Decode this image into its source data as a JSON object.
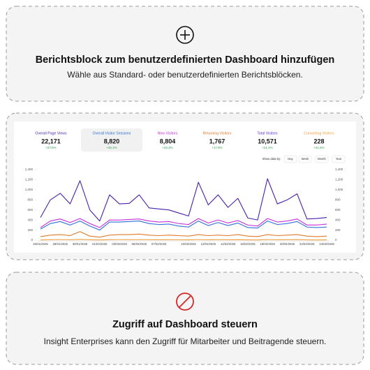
{
  "add_block": {
    "title": "Berichtsblock zum benutzerdefinierten Dashboard hinzufügen",
    "subtitle": "Wähle aus Standard- oder benutzerdefinierten Berichtsblöcken."
  },
  "metrics": [
    {
      "label": "Overall Page Views",
      "value": "22,171",
      "change": "+27.5%",
      "color": "#4a1fa8"
    },
    {
      "label": "Overall Visitor Sessions",
      "value": "8,820",
      "change": "+25.1%",
      "color": "#2f6fd6",
      "selected": true
    },
    {
      "label": "New Visitors",
      "value": "8,804",
      "change": "+23.3%",
      "color": "#c42fd6"
    },
    {
      "label": "Returning Visitors",
      "value": "1,767",
      "change": "+17.8%",
      "color": "#e07a2a"
    },
    {
      "label": "Total Visitors",
      "value": "10,571",
      "change": "+21.4%",
      "color": "#5b2bd0"
    },
    {
      "label": "Converting Visitors",
      "value": "228",
      "change": "+41.6%",
      "color": "#f0a040"
    }
  ],
  "show_data_by": {
    "label": "Show data by:",
    "options": [
      "Day",
      "Week",
      "Month",
      "Year"
    ]
  },
  "chart_data": {
    "type": "line",
    "categories": [
      "26/01/2025",
      null,
      "28/01/2025",
      null,
      "30/01/2025",
      null,
      "01/02/2025",
      null,
      "03/02/2025",
      null,
      "05/02/2025",
      null,
      "07/02/2025",
      null,
      null,
      "10/02/2025",
      null,
      "12/02/2025",
      null,
      "14/02/2025",
      null,
      "16/02/2025",
      null,
      "18/02/2025",
      null,
      "20/02/2025",
      null,
      "22/02/2025",
      null,
      "24/02/2025"
    ],
    "series": [
      {
        "name": "Overall Page Views",
        "color": "#4a1fa8",
        "values": [
          450,
          800,
          930,
          720,
          1180,
          600,
          380,
          900,
          720,
          730,
          900,
          640,
          620,
          600,
          540,
          480,
          1150,
          700,
          900,
          650,
          830,
          440,
          400,
          1220,
          720,
          800,
          920,
          420,
          430,
          450
        ]
      },
      {
        "name": "New Visitors",
        "color": "#c42fd6",
        "values": [
          250,
          380,
          420,
          350,
          430,
          330,
          250,
          400,
          400,
          410,
          420,
          380,
          360,
          370,
          330,
          310,
          430,
          340,
          400,
          340,
          390,
          300,
          280,
          430,
          360,
          380,
          420,
          300,
          300,
          320
        ]
      },
      {
        "name": "Overall Visitor Sessions",
        "color": "#2f6fd6",
        "values": [
          220,
          330,
          370,
          300,
          380,
          280,
          200,
          360,
          360,
          370,
          380,
          330,
          310,
          320,
          280,
          260,
          380,
          290,
          350,
          290,
          340,
          250,
          240,
          380,
          310,
          330,
          370,
          260,
          250,
          260
        ]
      },
      {
        "name": "Returning Visitors",
        "color": "#e07a2a",
        "values": [
          70,
          100,
          110,
          90,
          170,
          80,
          60,
          100,
          110,
          110,
          120,
          100,
          90,
          100,
          90,
          80,
          110,
          90,
          100,
          90,
          110,
          80,
          70,
          110,
          90,
          100,
          110,
          80,
          70,
          80
        ]
      },
      {
        "name": "Converting Visitors",
        "color": "#f0a040",
        "values": [
          5,
          10,
          12,
          8,
          15,
          8,
          4,
          10,
          12,
          10,
          12,
          9,
          8,
          9,
          7,
          6,
          12,
          8,
          10,
          8,
          10,
          6,
          5,
          12,
          8,
          9,
          11,
          6,
          5,
          6
        ]
      }
    ],
    "ylim": [
      0,
      1400
    ],
    "yticks": [
      0,
      200,
      400,
      600,
      800,
      {
        "value": 1000,
        "label": "1,000"
      },
      {
        "value": 1200,
        "label": "1,200"
      },
      {
        "value": 1400,
        "label": "1,400"
      }
    ],
    "grid": false
  },
  "access": {
    "title": "Zugriff auf Dashboard steuern",
    "subtitle": "Insight Enterprises kann den Zugriff für Mitarbeiter und Beitragende steuern."
  }
}
